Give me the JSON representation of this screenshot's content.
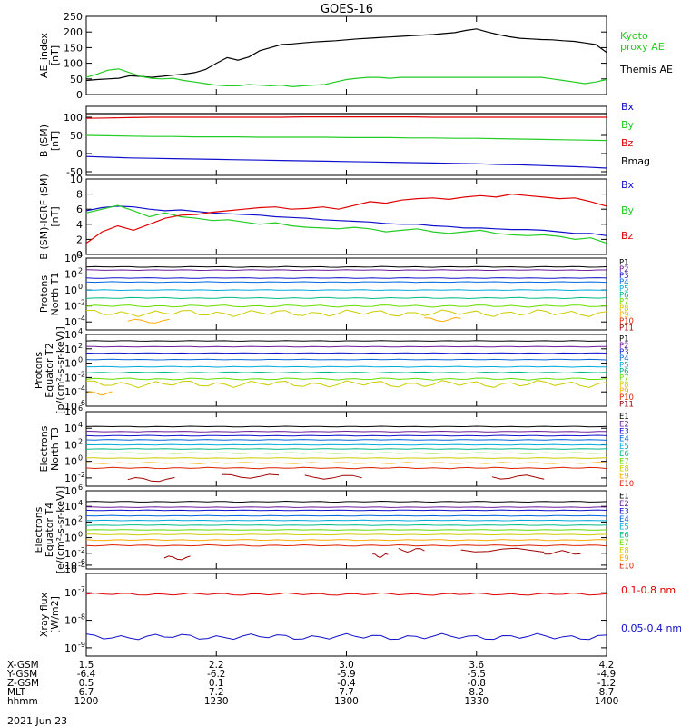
{
  "title": "GOES-16",
  "date_label": "2021 Jun 23",
  "colors": {
    "black": "#000000",
    "red": "#e00000",
    "green": "#22cc22",
    "blue": "#1010cc",
    "darkred": "#a00000"
  },
  "footer": {
    "rows": [
      {
        "label": "X-GSM",
        "values": [
          "1.5",
          "2.2",
          "3.0",
          "3.6",
          "4.2"
        ]
      },
      {
        "label": "Y-GSM",
        "values": [
          "-6.4",
          "-6.2",
          "-5.9",
          "-5.5",
          "-4.9"
        ]
      },
      {
        "label": "Z-GSM",
        "values": [
          "0.5",
          "0.1",
          "-0.4",
          "-0.8",
          "-1.2"
        ]
      },
      {
        "label": "MLT",
        "values": [
          "6.7",
          "7.2",
          "7.7",
          "8.2",
          "8.7"
        ]
      },
      {
        "label": "hhmm",
        "values": [
          "1200",
          "1230",
          "1300",
          "1330",
          "1400"
        ]
      }
    ]
  },
  "chart_data": [
    {
      "type": "line",
      "ylabel": [
        "AE_index",
        "[nT]"
      ],
      "x_range": [
        "1200",
        "1400"
      ],
      "ylim": [
        0,
        250
      ],
      "yticks": [
        "0",
        "50",
        "100",
        "150",
        "200",
        "250"
      ],
      "legend": [
        "Kyoto",
        "proxy AE",
        "Themis AE"
      ],
      "series": [
        {
          "name": "Themis AE",
          "color": "#000000",
          "values": [
            45,
            48,
            50,
            52,
            60,
            58,
            55,
            58,
            62,
            65,
            70,
            80,
            100,
            118,
            110,
            120,
            140,
            150,
            160,
            162,
            165,
            168,
            170,
            172,
            175,
            178,
            180,
            182,
            184,
            186,
            188,
            190,
            192,
            195,
            198,
            205,
            210,
            200,
            192,
            185,
            180,
            178,
            176,
            175,
            172,
            170,
            165,
            160,
            135
          ]
        },
        {
          "name": "Kyoto proxy AE",
          "color": "#22cc22",
          "values": [
            55,
            65,
            78,
            82,
            70,
            58,
            52,
            50,
            52,
            45,
            40,
            35,
            30,
            28,
            28,
            32,
            30,
            28,
            30,
            25,
            28,
            30,
            32,
            40,
            48,
            52,
            55,
            55,
            52,
            55,
            55,
            55,
            55,
            55,
            55,
            55,
            55,
            55,
            55,
            55,
            55,
            55,
            55,
            50,
            45,
            40,
            35,
            40,
            48
          ]
        }
      ]
    },
    {
      "type": "line",
      "ylabel": [
        "B (SM)",
        "[nT]"
      ],
      "ylim": [
        -60,
        130
      ],
      "yticks": [
        "-50",
        "0",
        "50",
        "100"
      ],
      "legend": [
        "Bx",
        "By",
        "Bz",
        "Bmag"
      ],
      "series": [
        {
          "name": "Bmag",
          "color": "#000000",
          "values": [
            110,
            110,
            110,
            110,
            110,
            110,
            110,
            110,
            110,
            110,
            110,
            110,
            110,
            110,
            110,
            110,
            110,
            110,
            110,
            110,
            110,
            110,
            110,
            110,
            110
          ]
        },
        {
          "name": "Bz",
          "color": "#e00000",
          "values": [
            97,
            98,
            99,
            100,
            100,
            100,
            100,
            100,
            100,
            100,
            101,
            101,
            101,
            101,
            101,
            101,
            100,
            100,
            100,
            100,
            100,
            100,
            100,
            100,
            100
          ]
        },
        {
          "name": "By",
          "color": "#22cc22",
          "values": [
            50,
            49,
            48,
            47,
            47,
            46,
            46,
            46,
            45,
            45,
            45,
            45,
            44,
            44,
            44,
            43,
            43,
            42,
            42,
            41,
            40,
            39,
            38,
            37,
            36
          ]
        },
        {
          "name": "Bx",
          "color": "#1010cc",
          "values": [
            -8,
            -10,
            -12,
            -13,
            -14,
            -15,
            -16,
            -17,
            -18,
            -19,
            -20,
            -21,
            -22,
            -23,
            -24,
            -25,
            -26,
            -27,
            -28,
            -30,
            -31,
            -33,
            -35,
            -37,
            -40
          ]
        }
      ]
    },
    {
      "type": "line",
      "ylabel": [
        "B (SM)-IGRF (SM)",
        "[nT]"
      ],
      "ylim": [
        0,
        10
      ],
      "yticks": [
        "0",
        "2",
        "4",
        "6",
        "8",
        "10"
      ],
      "legend": [
        "Bx",
        "By",
        "Bz"
      ],
      "series": [
        {
          "name": "Bx",
          "color": "#1010cc",
          "values": [
            5.8,
            6.2,
            6.4,
            6.3,
            6.0,
            5.8,
            5.9,
            5.7,
            5.5,
            5.4,
            5.3,
            5.2,
            5.0,
            4.9,
            4.8,
            4.6,
            4.5,
            4.4,
            4.3,
            4.1,
            4.0,
            4.0,
            3.8,
            3.7,
            3.5,
            3.5,
            3.4,
            3.3,
            3.3,
            3.2,
            3.0,
            2.8,
            2.8,
            2.5
          ]
        },
        {
          "name": "By",
          "color": "#22cc22",
          "values": [
            5.5,
            6.0,
            6.5,
            5.8,
            5.0,
            5.5,
            5.0,
            4.8,
            4.5,
            4.6,
            4.3,
            4.0,
            4.2,
            3.8,
            3.6,
            3.5,
            3.4,
            3.6,
            3.4,
            3.0,
            3.2,
            3.4,
            3.0,
            2.8,
            3.0,
            3.2,
            2.8,
            2.6,
            2.5,
            2.6,
            2.4,
            2.0,
            2.2,
            1.5
          ]
        },
        {
          "name": "Bz",
          "color": "#e00000",
          "values": [
            1.5,
            3.0,
            3.8,
            3.2,
            4.0,
            4.8,
            5.2,
            5.3,
            5.6,
            5.8,
            6.0,
            6.2,
            6.3,
            6.0,
            6.1,
            6.3,
            6.0,
            6.5,
            7.0,
            6.8,
            7.2,
            7.4,
            7.5,
            7.3,
            7.6,
            7.8,
            7.6,
            8.0,
            7.8,
            7.6,
            7.4,
            7.5,
            7.0,
            6.4
          ]
        }
      ]
    },
    {
      "type": "line",
      "log": true,
      "ylabel": [
        "Protons",
        "North T1"
      ],
      "ylim": [
        -5,
        4
      ],
      "yticks": [
        {
          "e": -4,
          "v": "10"
        },
        {
          "e": -2,
          "v": "10"
        },
        {
          "e": 0,
          "v": "10"
        },
        {
          "e": 2,
          "v": "10"
        },
        {
          "e": 4,
          "v": "10"
        }
      ],
      "legend": [
        "P1",
        "P2",
        "P3",
        "P4",
        "P5",
        "P6",
        "P7",
        "P8",
        "P9",
        "P10",
        "P11"
      ],
      "legend_colors": [
        "#000000",
        "#6a1b9a",
        "#1010cc",
        "#0066dd",
        "#00aadd",
        "#00bb88",
        "#66dd00",
        "#cccc00",
        "#ffaa00",
        "#dd2200",
        "#a00000"
      ],
      "series": [
        {
          "name": "P1",
          "color": "#000000",
          "level": 2.9,
          "wiggle": 0.04
        },
        {
          "name": "P2",
          "color": "#6a1b9a",
          "level": 2.5,
          "wiggle": 0.03
        },
        {
          "name": "P3",
          "color": "#1010cc",
          "level": 1.5,
          "wiggle": 0.03
        },
        {
          "name": "P4",
          "color": "#0066dd",
          "level": 1.0,
          "wiggle": 0.03
        },
        {
          "name": "P5",
          "color": "#00aadd",
          "level": 0.0,
          "wiggle": 0.03
        },
        {
          "name": "P6",
          "color": "#00bb88",
          "level": -1.0,
          "wiggle": 0.05
        },
        {
          "name": "P7",
          "color": "#66dd00",
          "level": -2.0,
          "wiggle": 0.1
        },
        {
          "name": "P8",
          "color": "#cccc00",
          "level": -2.9,
          "wiggle": 0.3
        },
        {
          "name": "P9",
          "color": "#ffaa00",
          "segments": [
            [
              0.08,
              0.16,
              -3.9
            ]
          ],
          "segments2": [
            [
              0.65,
              0.72,
              -3.7
            ]
          ]
        }
      ]
    },
    {
      "type": "line",
      "log": true,
      "ylabel": [
        "Protons",
        "Equator T2",
        "[p/(cm²-s-sr-keV)]"
      ],
      "ylim": [
        -6,
        4
      ],
      "yticks": [
        {
          "e": -6,
          "v": "10"
        },
        {
          "e": -4,
          "v": "10"
        },
        {
          "e": -2,
          "v": "10"
        },
        {
          "e": 0,
          "v": "10"
        },
        {
          "e": 2,
          "v": "10"
        },
        {
          "e": 4,
          "v": "10"
        }
      ],
      "legend": [
        "P1",
        "P2",
        "P3",
        "P4",
        "P5",
        "P6",
        "P7",
        "P8",
        "P9",
        "P10",
        "P11"
      ],
      "legend_colors": [
        "#000000",
        "#6a1b9a",
        "#1010cc",
        "#0066dd",
        "#00aadd",
        "#00bb88",
        "#66dd00",
        "#cccc00",
        "#ffaa00",
        "#dd2200",
        "#a00000"
      ],
      "series": [
        {
          "name": "P1",
          "color": "#000000",
          "level": 3.1,
          "wiggle": 0.03
        },
        {
          "name": "P2",
          "color": "#6a1b9a",
          "level": 2.3,
          "wiggle": 0.03
        },
        {
          "name": "P3",
          "color": "#1010cc",
          "level": 1.4,
          "wiggle": 0.03
        },
        {
          "name": "P4",
          "color": "#0066dd",
          "level": 0.5,
          "wiggle": 0.03
        },
        {
          "name": "P5",
          "color": "#00aadd",
          "level": -0.5,
          "wiggle": 0.04
        },
        {
          "name": "P6",
          "color": "#00bb88",
          "level": -1.3,
          "wiggle": 0.05
        },
        {
          "name": "P7",
          "color": "#66dd00",
          "level": -2.2,
          "wiggle": 0.1
        },
        {
          "name": "P8",
          "color": "#cccc00",
          "level": -2.9,
          "wiggle": 0.35
        },
        {
          "name": "P9",
          "color": "#ffaa00",
          "segments": [
            [
              0.0,
              0.05,
              -4.2
            ]
          ]
        }
      ]
    },
    {
      "type": "line",
      "log": true,
      "ylabel": [
        "Electrons",
        "North T3"
      ],
      "ylim": [
        -3,
        6
      ],
      "yticks": [
        {
          "e": -2,
          "v": "10"
        },
        {
          "e": 0,
          "v": "10"
        },
        {
          "e": 2,
          "v": "10"
        },
        {
          "e": 4,
          "v": "10"
        },
        {
          "e": 6,
          "v": "10"
        }
      ],
      "legend": [
        "E1",
        "E2",
        "E3",
        "E4",
        "E5",
        "E6",
        "E7",
        "E8",
        "E9",
        "E10"
      ],
      "legend_colors": [
        "#000000",
        "#6a1b9a",
        "#1010cc",
        "#0066dd",
        "#00aadd",
        "#00bb88",
        "#66dd00",
        "#cccc00",
        "#ffaa00",
        "#dd2200"
      ],
      "series": [
        {
          "name": "E1",
          "color": "#000000",
          "level": 4.2,
          "wiggle": 0.03
        },
        {
          "name": "E2",
          "color": "#6a1b9a",
          "level": 3.6,
          "wiggle": 0.03
        },
        {
          "name": "E3",
          "color": "#1010cc",
          "level": 3.1,
          "wiggle": 0.03
        },
        {
          "name": "E4",
          "color": "#0066dd",
          "level": 2.6,
          "wiggle": 0.03
        },
        {
          "name": "E5",
          "color": "#00aadd",
          "level": 2.0,
          "wiggle": 0.03
        },
        {
          "name": "E6",
          "color": "#00bb88",
          "level": 1.5,
          "wiggle": 0.03
        },
        {
          "name": "E7",
          "color": "#66dd00",
          "level": 1.0,
          "wiggle": 0.03
        },
        {
          "name": "E8",
          "color": "#cccc00",
          "level": 0.4,
          "wiggle": 0.03
        },
        {
          "name": "E9",
          "color": "#ffaa00",
          "level": -0.2,
          "wiggle": 0.05
        },
        {
          "name": "E10",
          "color": "#dd2200",
          "level": -0.8,
          "wiggle": 0.06
        },
        {
          "name": "E10b",
          "color": "#a00000",
          "segments": [
            [
              0.08,
              0.17,
              -2.2
            ],
            [
              0.26,
              0.37,
              -1.8
            ],
            [
              0.42,
              0.53,
              -1.9
            ],
            [
              0.78,
              0.88,
              -1.9
            ]
          ]
        }
      ]
    },
    {
      "type": "line",
      "log": true,
      "ylabel": [
        "Electrons",
        "Equator T4",
        "[e/(cm²-s-sr-keV)]"
      ],
      "ylim": [
        -4,
        6
      ],
      "yticks": [
        {
          "e": -4,
          "v": "10"
        },
        {
          "e": -2,
          "v": "10"
        },
        {
          "e": 0,
          "v": "10"
        },
        {
          "e": 2,
          "v": "10"
        },
        {
          "e": 4,
          "v": "10"
        },
        {
          "e": 6,
          "v": "10"
        }
      ],
      "legend": [
        "E1",
        "E2",
        "E3",
        "E4",
        "E5",
        "E6",
        "E7",
        "E8",
        "E9",
        "E10"
      ],
      "legend_colors": [
        "#000000",
        "#6a1b9a",
        "#1010cc",
        "#0066dd",
        "#00aadd",
        "#00bb88",
        "#66dd00",
        "#cccc00",
        "#ffaa00",
        "#dd2200"
      ],
      "series": [
        {
          "name": "E1",
          "color": "#000000",
          "level": 4.6,
          "wiggle": 0.04
        },
        {
          "name": "E2",
          "color": "#6a1b9a",
          "level": 3.9,
          "wiggle": 0.03
        },
        {
          "name": "E3",
          "color": "#1010cc",
          "level": 3.5,
          "wiggle": 0.03
        },
        {
          "name": "E4",
          "color": "#0066dd",
          "level": 2.8,
          "wiggle": 0.03
        },
        {
          "name": "E5",
          "color": "#00aadd",
          "level": 2.2,
          "wiggle": 0.03
        },
        {
          "name": "E6",
          "color": "#00bb88",
          "level": 1.6,
          "wiggle": 0.03
        },
        {
          "name": "E7",
          "color": "#66dd00",
          "level": 1.0,
          "wiggle": 0.03
        },
        {
          "name": "E8",
          "color": "#cccc00",
          "level": 0.4,
          "wiggle": 0.04
        },
        {
          "name": "E9",
          "color": "#ffaa00",
          "level": -0.3,
          "wiggle": 0.05
        },
        {
          "name": "E10",
          "color": "#dd2200",
          "level": -1.0,
          "wiggle": 0.06
        },
        {
          "name": "E10b",
          "color": "#a00000",
          "segments": [
            [
              0.15,
              0.2,
              -2.6
            ],
            [
              0.55,
              0.58,
              -2.3
            ],
            [
              0.6,
              0.65,
              -1.6
            ],
            [
              0.72,
              0.88,
              -1.6
            ],
            [
              0.88,
              0.95,
              -1.9
            ]
          ]
        }
      ]
    },
    {
      "type": "line",
      "log": true,
      "ylabel": [
        "Xray flux",
        "[W/m2]"
      ],
      "ylim": [
        -9.3,
        -6.3
      ],
      "yticks": [
        {
          "e": -9,
          "v": "10"
        },
        {
          "e": -8,
          "v": "10"
        },
        {
          "e": -7,
          "v": "10"
        },
        {
          "e": -6,
          "v": "10"
        }
      ],
      "legend": [
        "0.1-0.8 nm",
        "0.05-0.4 nm"
      ],
      "legend_colors": [
        "#e00000",
        "#1010cc"
      ],
      "series": [
        {
          "name": "0.1-0.8 nm",
          "color": "#e00000",
          "level": -7.05,
          "wiggle": 0.03
        },
        {
          "name": "0.05-0.4 nm",
          "color": "#1010cc",
          "level": -8.6,
          "wiggle": 0.08
        }
      ]
    }
  ]
}
